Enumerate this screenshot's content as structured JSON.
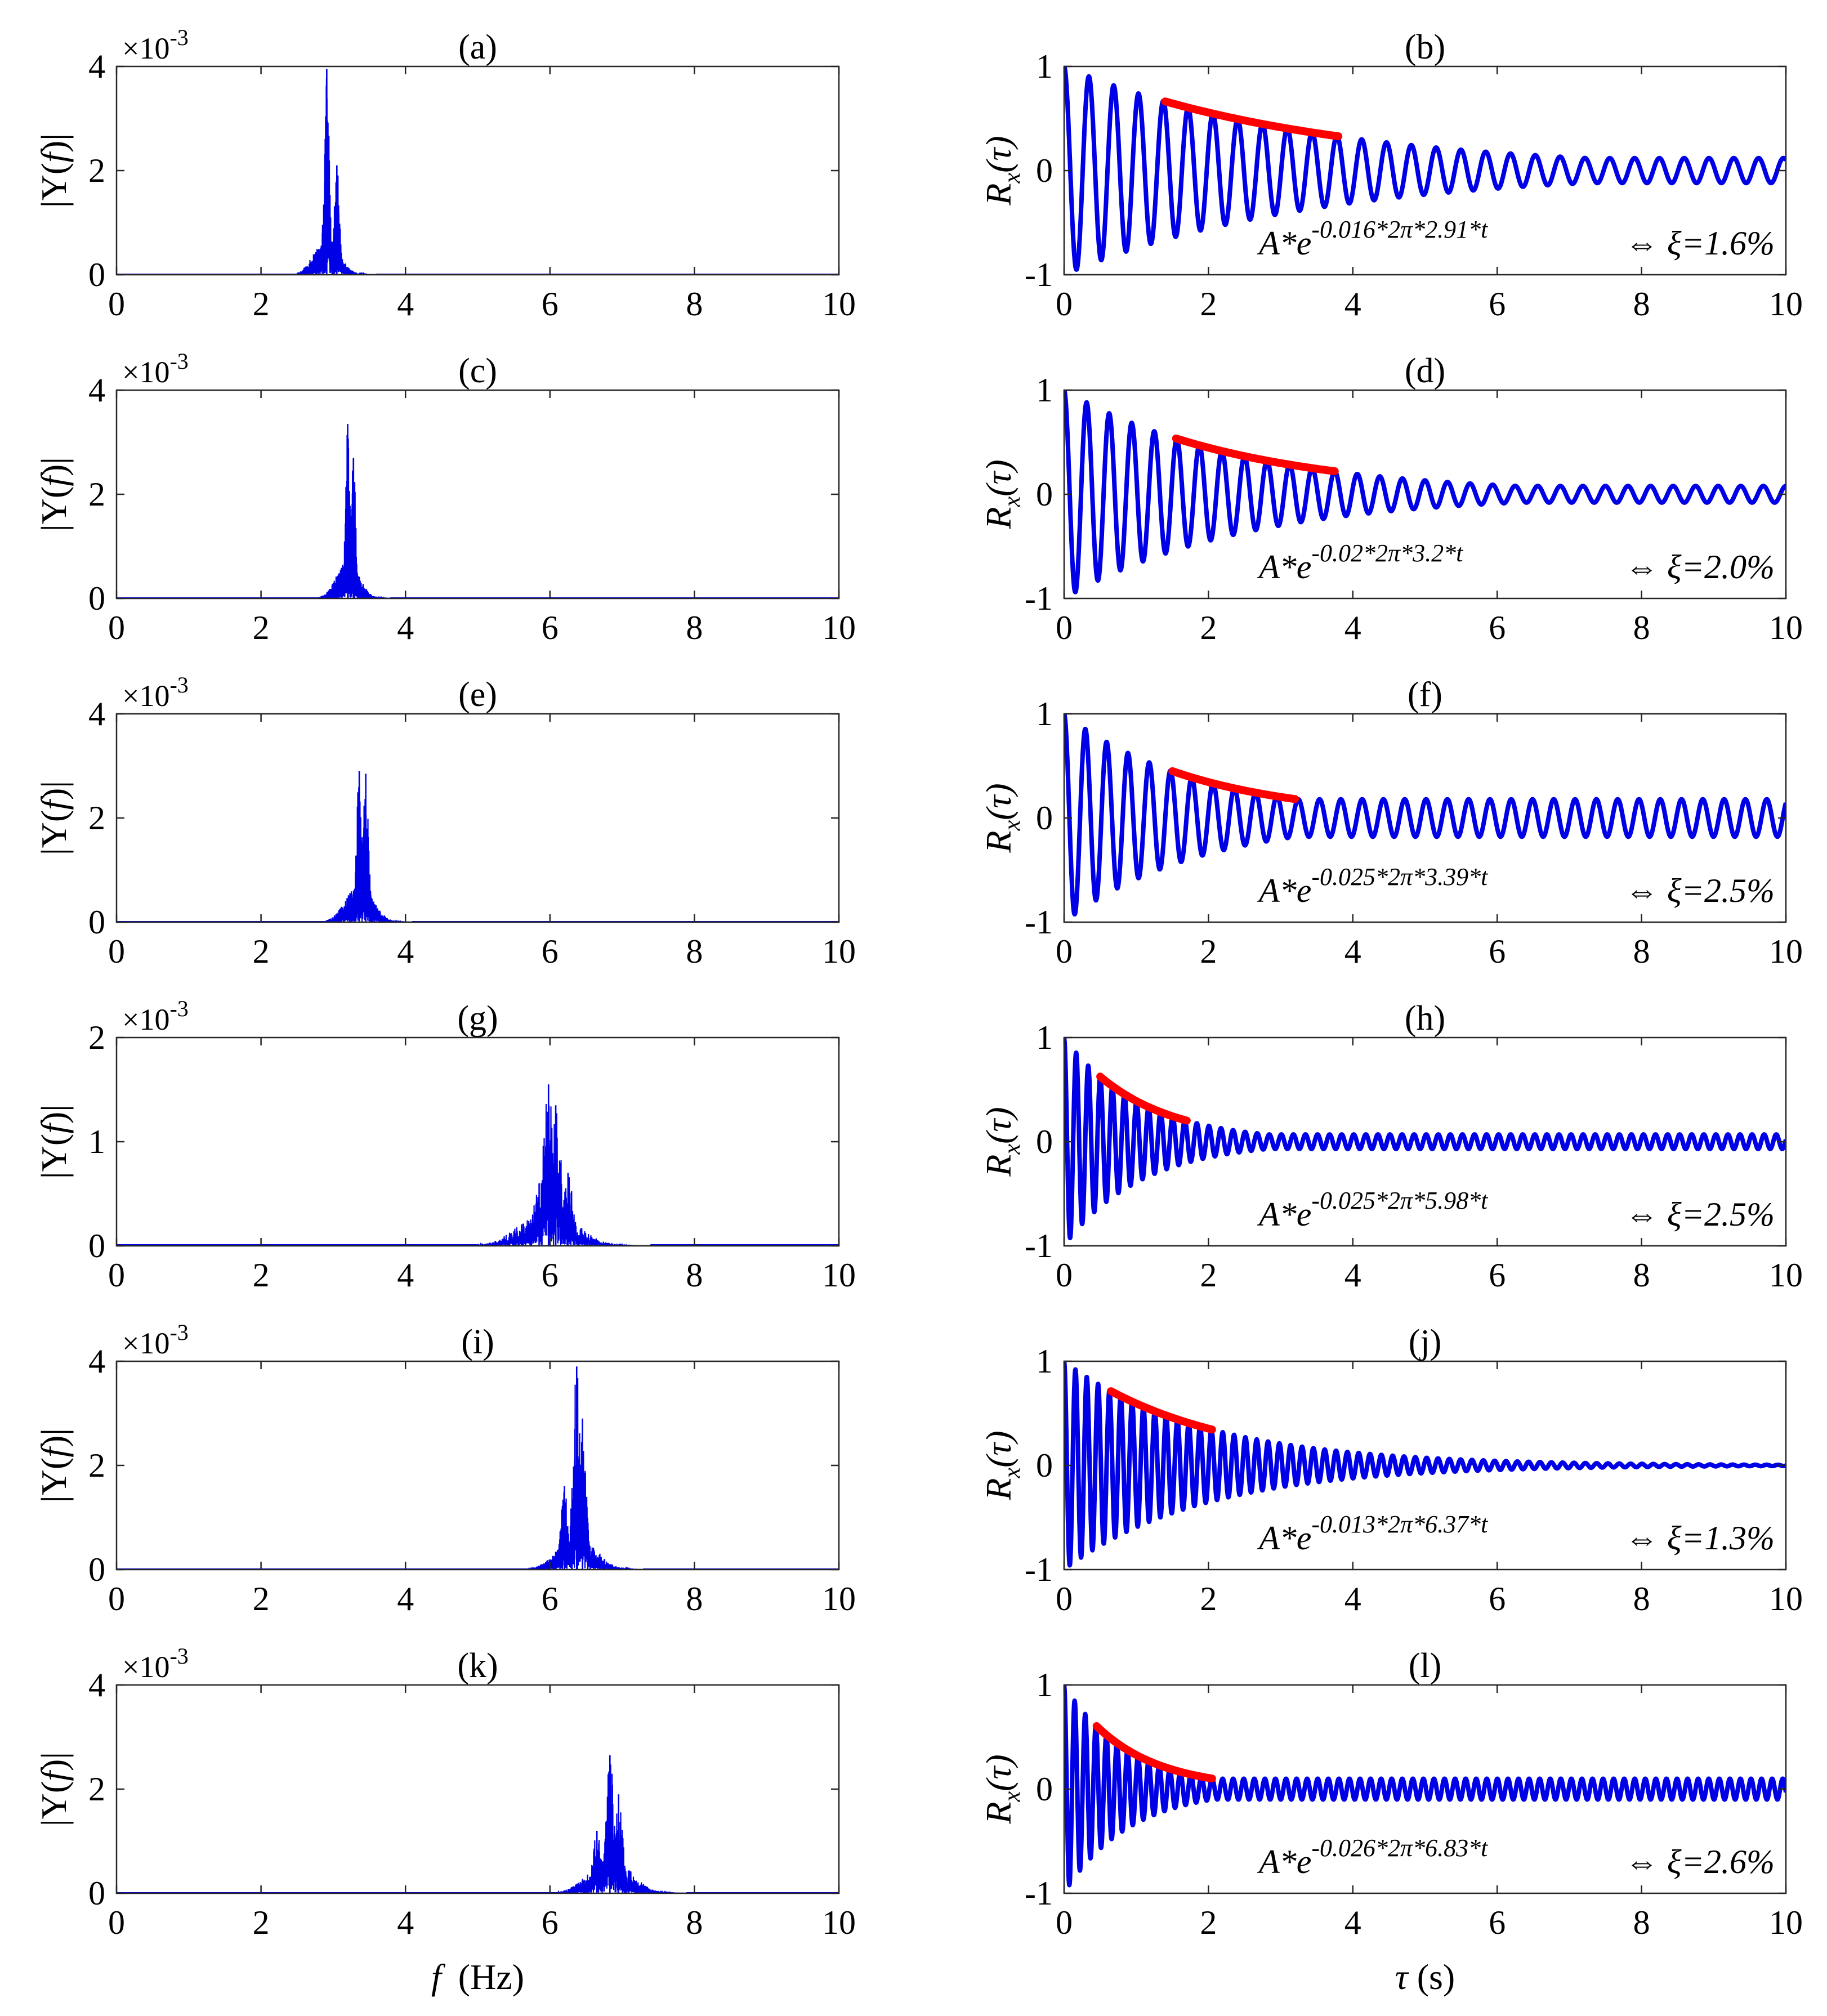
{
  "figure": {
    "psd_ylabel": "|Y(f)|",
    "psd_ylabel_pre": "|Y(",
    "psd_ylabel_f": "f",
    "psd_ylabel_post": ")|",
    "acf_ylabel_R": "R",
    "acf_ylabel_x": "x",
    "acf_ylabel_tau": "(τ)",
    "xlabel_left": "f  (Hz)",
    "xlabel_left_f": "f",
    "xlabel_left_unit": "(Hz)",
    "xlabel_right": "τ (s)",
    "xlabel_right_tau": "τ",
    "xlabel_right_unit": "(s)",
    "exponent_label": "×10",
    "exponent_power": "-3",
    "colors": {
      "signal": "#0000e6",
      "fit": "#ff0000",
      "axis": "#262626"
    }
  },
  "chart_data": [
    {
      "panel": "a",
      "title": "(a)",
      "type": "line",
      "kind": "spectrum",
      "xlim": [
        0,
        10
      ],
      "ylim": [
        0,
        4
      ],
      "y_multiplier": "×10^-3",
      "xticks": [
        "0",
        "2",
        "4",
        "6",
        "8",
        "10"
      ],
      "yticks": [
        "0",
        "2",
        "4"
      ],
      "xlabel": "",
      "ylabel": "|Y(f)|",
      "peaks": [
        {
          "f": 2.91,
          "amp": 3.95
        },
        {
          "f": 3.05,
          "amp": 2.1
        }
      ],
      "band": [
        2.5,
        3.6
      ]
    },
    {
      "panel": "b",
      "title": "(b)",
      "type": "line",
      "kind": "autocorrelation",
      "xlim": [
        0,
        10
      ],
      "ylim": [
        -1,
        1
      ],
      "xticks": [
        "0",
        "2",
        "4",
        "6",
        "8",
        "10"
      ],
      "yticks": [
        "-1",
        "0",
        "1"
      ],
      "xlabel": "",
      "ylabel": "Rx(τ)",
      "freq": 2.91,
      "xi": 0.016,
      "fit_range": [
        1.4,
        3.8
      ],
      "residual_amp": 0.12,
      "eq_base": "A*e",
      "eq_exp": "-0.016*2π*2.91*t",
      "eq_result": "⇔ ξ=1.6%"
    },
    {
      "panel": "c",
      "title": "(c)",
      "type": "line",
      "kind": "spectrum",
      "xlim": [
        0,
        10
      ],
      "ylim": [
        0,
        4
      ],
      "y_multiplier": "×10^-3",
      "xticks": [
        "0",
        "2",
        "4",
        "6",
        "8",
        "10"
      ],
      "yticks": [
        "0",
        "2",
        "4"
      ],
      "xlabel": "",
      "ylabel": "|Y(f)|",
      "peaks": [
        {
          "f": 3.2,
          "amp": 3.35
        },
        {
          "f": 3.28,
          "amp": 2.7
        }
      ],
      "band": [
        2.8,
        3.8
      ]
    },
    {
      "panel": "d",
      "title": "(d)",
      "type": "line",
      "kind": "autocorrelation",
      "xlim": [
        0,
        10
      ],
      "ylim": [
        -1,
        1
      ],
      "xticks": [
        "0",
        "2",
        "4",
        "6",
        "8",
        "10"
      ],
      "yticks": [
        "-1",
        "0",
        "1"
      ],
      "xlabel": "",
      "ylabel": "Rx(τ)",
      "freq": 3.2,
      "xi": 0.02,
      "fit_range": [
        1.55,
        3.75
      ],
      "residual_amp": 0.08,
      "eq_base": "A*e",
      "eq_exp": "-0.02*2π*3.2*t",
      "eq_result": "⇔ ξ=2.0%"
    },
    {
      "panel": "e",
      "title": "(e)",
      "type": "line",
      "kind": "spectrum",
      "xlim": [
        0,
        10
      ],
      "ylim": [
        0,
        4
      ],
      "y_multiplier": "×10^-3",
      "xticks": [
        "0",
        "2",
        "4",
        "6",
        "8",
        "10"
      ],
      "yticks": [
        "0",
        "2",
        "4"
      ],
      "xlabel": "",
      "ylabel": "|Y(f)|",
      "peaks": [
        {
          "f": 3.36,
          "amp": 2.9
        },
        {
          "f": 3.45,
          "amp": 2.85
        }
      ],
      "band": [
        2.9,
        4.1
      ]
    },
    {
      "panel": "f",
      "title": "(f)",
      "type": "line",
      "kind": "autocorrelation",
      "xlim": [
        0,
        10
      ],
      "ylim": [
        -1,
        1
      ],
      "xticks": [
        "0",
        "2",
        "4",
        "6",
        "8",
        "10"
      ],
      "yticks": [
        "-1",
        "0",
        "1"
      ],
      "xlabel": "",
      "ylabel": "Rx(τ)",
      "freq": 3.39,
      "xi": 0.025,
      "fit_range": [
        1.5,
        3.2
      ],
      "residual_amp": 0.18,
      "eq_base": "A*e",
      "eq_exp": "-0.025*2π*3.39*t",
      "eq_result": "⇔ ξ=2.5%"
    },
    {
      "panel": "g",
      "title": "(g)",
      "type": "line",
      "kind": "spectrum",
      "xlim": [
        0,
        10
      ],
      "ylim": [
        0,
        2
      ],
      "y_multiplier": "×10^-3",
      "xticks": [
        "0",
        "2",
        "4",
        "6",
        "8",
        "10"
      ],
      "yticks": [
        "0",
        "1",
        "2"
      ],
      "xlabel": "",
      "ylabel": "|Y(f)|",
      "peaks": [
        {
          "f": 5.98,
          "amp": 1.55
        },
        {
          "f": 6.08,
          "amp": 1.35
        },
        {
          "f": 5.85,
          "amp": 0.6
        },
        {
          "f": 6.25,
          "amp": 0.7
        }
      ],
      "band": [
        5.0,
        7.4
      ]
    },
    {
      "panel": "h",
      "title": "(h)",
      "type": "line",
      "kind": "autocorrelation",
      "xlim": [
        0,
        10
      ],
      "ylim": [
        -1,
        1
      ],
      "xticks": [
        "0",
        "2",
        "4",
        "6",
        "8",
        "10"
      ],
      "yticks": [
        "-1",
        "0",
        "1"
      ],
      "xlabel": "",
      "ylabel": "Rx(τ)",
      "freq": 5.98,
      "xi": 0.025,
      "fit_range": [
        0.5,
        1.7
      ],
      "residual_amp": 0.07,
      "eq_base": "A*e",
      "eq_exp": "-0.025*2π*5.98*t",
      "eq_result": "⇔ ξ=2.5%"
    },
    {
      "panel": "i",
      "title": "(i)",
      "type": "line",
      "kind": "spectrum",
      "xlim": [
        0,
        10
      ],
      "ylim": [
        0,
        4
      ],
      "y_multiplier": "×10^-3",
      "xticks": [
        "0",
        "2",
        "4",
        "6",
        "8",
        "10"
      ],
      "yticks": [
        "0",
        "2",
        "4"
      ],
      "xlabel": "",
      "ylabel": "|Y(f)|",
      "peaks": [
        {
          "f": 6.37,
          "amp": 3.9
        },
        {
          "f": 6.45,
          "amp": 2.9
        },
        {
          "f": 6.2,
          "amp": 1.6
        }
      ],
      "band": [
        5.7,
        7.3
      ]
    },
    {
      "panel": "j",
      "title": "(j)",
      "type": "line",
      "kind": "autocorrelation",
      "xlim": [
        0,
        10
      ],
      "ylim": [
        -1,
        1
      ],
      "xticks": [
        "0",
        "2",
        "4",
        "6",
        "8",
        "10"
      ],
      "yticks": [
        "-1",
        "0",
        "1"
      ],
      "xlabel": "",
      "ylabel": "Rx(τ)",
      "freq": 6.37,
      "xi": 0.013,
      "fit_range": [
        0.65,
        2.05
      ],
      "residual_amp": 0.0,
      "eq_base": "A*e",
      "eq_exp": "-0.013*2π*6.37*t",
      "eq_result": "⇔ ξ=1.3%"
    },
    {
      "panel": "k",
      "title": "(k)",
      "type": "line",
      "kind": "spectrum",
      "xlim": [
        0,
        10
      ],
      "ylim": [
        0,
        4
      ],
      "y_multiplier": "×10^-3",
      "xticks": [
        "0",
        "2",
        "4",
        "6",
        "8",
        "10"
      ],
      "yticks": [
        "0",
        "2",
        "4"
      ],
      "xlabel": "f (Hz)",
      "ylabel": "|Y(f)|",
      "peaks": [
        {
          "f": 6.83,
          "amp": 2.65
        },
        {
          "f": 6.95,
          "amp": 1.9
        },
        {
          "f": 6.65,
          "amp": 1.2
        }
      ],
      "band": [
        6.1,
        7.9
      ]
    },
    {
      "panel": "l",
      "title": "(l)",
      "type": "line",
      "kind": "autocorrelation",
      "xlim": [
        0,
        10
      ],
      "ylim": [
        -1,
        1
      ],
      "xticks": [
        "0",
        "2",
        "4",
        "6",
        "8",
        "10"
      ],
      "yticks": [
        "-1",
        "0",
        "1"
      ],
      "xlabel": "τ (s)",
      "ylabel": "Rx(τ)",
      "freq": 6.83,
      "xi": 0.026,
      "fit_range": [
        0.45,
        2.05
      ],
      "residual_amp": 0.1,
      "eq_base": "A*e",
      "eq_exp": "-0.026*2π*6.83*t",
      "eq_result": "⇔ ξ=2.6%"
    }
  ]
}
